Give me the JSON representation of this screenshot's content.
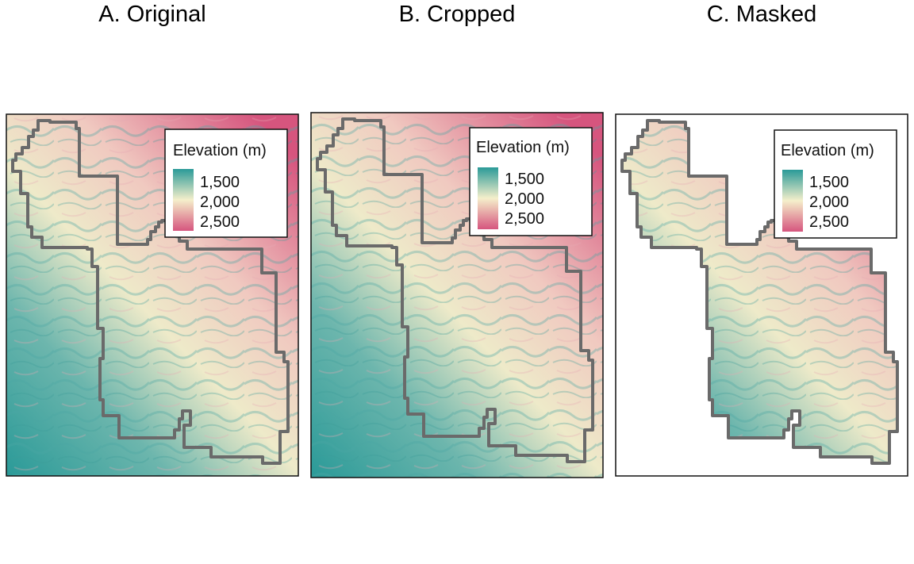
{
  "panels": [
    {
      "title": "A. Original",
      "variant": "original"
    },
    {
      "title": "B. Cropped",
      "variant": "cropped"
    },
    {
      "title": "C. Masked",
      "variant": "masked"
    }
  ],
  "legend": {
    "title": "Elevation (m)",
    "labels": [
      "1,500",
      "2,000",
      "2,500"
    ]
  },
  "colors": {
    "low": "#2a9a98",
    "mid": "#f5efcb",
    "high": "#d6557e",
    "boundary": "#6a6a6a"
  }
}
